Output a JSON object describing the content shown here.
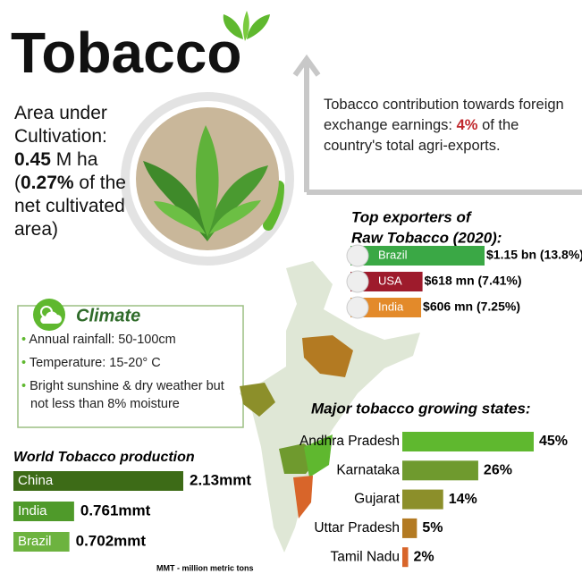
{
  "title": "Tobacco",
  "area": {
    "label": "Area under Cultivation:",
    "value": "0.45",
    "unit": "M ha",
    "share_open": "(",
    "share": "0.27%",
    "share_text": "of the net cultivated area)"
  },
  "forex": {
    "text_before": "Tobacco contribution towards foreign exchange earnings:",
    "highlight": "4%",
    "text_after": "of the country's total agri-exports."
  },
  "exporters": {
    "title_line1": "Top exporters of",
    "title_line2": "Raw Tobacco (2020):",
    "items": [
      {
        "country": "Brazil",
        "value": 1.15,
        "label": "$1.15 bn (13.8%)",
        "color": "#3aa845"
      },
      {
        "country": "USA",
        "value": 0.618,
        "label": "$618 mn (7.41%)",
        "color": "#9e1b2c"
      },
      {
        "country": "India",
        "value": 0.606,
        "label": "$606 mn (7.25%)",
        "color": "#e38a2a"
      }
    ]
  },
  "climate": {
    "title": "Climate",
    "items": [
      "Annual rainfall: 50-100cm",
      "Temperature: 15-20° C",
      "Bright sunshine & dry weather but not less than 8% moisture"
    ]
  },
  "world_production": {
    "title": "World Tobacco production",
    "items": [
      {
        "country": "China",
        "value": 2.13,
        "label": "2.13mmt",
        "color": "#3d6b17"
      },
      {
        "country": "India",
        "value": 0.761,
        "label": "0.761mmt",
        "color": "#4f9a2a"
      },
      {
        "country": "Brazil",
        "value": 0.702,
        "label": "0.702mmt",
        "color": "#6db33f"
      }
    ],
    "note": "MMT - million metric tons"
  },
  "states": {
    "title": "Major tobacco growing states:",
    "items": [
      {
        "name": "Andhra Pradesh",
        "value": 45,
        "label": "45%",
        "color": "#5fb82f"
      },
      {
        "name": "Karnataka",
        "value": 26,
        "label": "26%",
        "color": "#6f9a2e"
      },
      {
        "name": "Gujarat",
        "value": 14,
        "label": "14%",
        "color": "#8c8f2a"
      },
      {
        "name": "Uttar Pradesh",
        "value": 5,
        "label": "5%",
        "color": "#b37a22"
      },
      {
        "name": "Tamil Nadu",
        "value": 2,
        "label": "2%",
        "color": "#d8652a"
      }
    ]
  }
}
